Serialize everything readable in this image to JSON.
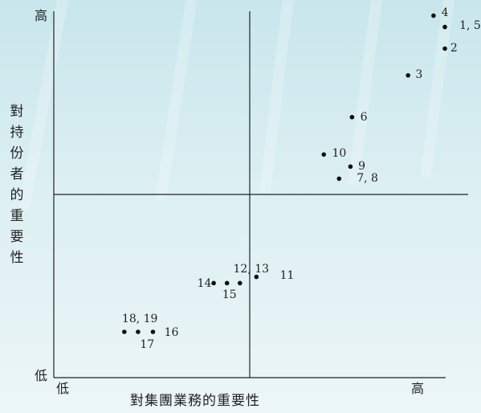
{
  "chart_data": {
    "type": "scatter",
    "xlabel": "對集團業務的重要性",
    "ylabel": "對持份者的重要性",
    "x_low": "低",
    "x_high": "高",
    "y_low": "低",
    "y_high": "高",
    "xlim": [
      0,
      100
    ],
    "ylim": [
      0,
      100
    ],
    "quadrant_split": {
      "x": 50,
      "y": 50
    },
    "points": [
      {
        "x": 96.9,
        "y": 98.8
      },
      {
        "x": 99.8,
        "y": 95.7
      },
      {
        "x": 99.8,
        "y": 89.8
      },
      {
        "x": 90.4,
        "y": 82.5
      },
      {
        "x": 76.1,
        "y": 71.1
      },
      {
        "x": 68.9,
        "y": 60.9
      },
      {
        "x": 75.7,
        "y": 57.6
      },
      {
        "x": 72.8,
        "y": 54.3
      },
      {
        "x": 51.7,
        "y": 27.5
      },
      {
        "x": 40.8,
        "y": 25.8
      },
      {
        "x": 44.2,
        "y": 25.8
      },
      {
        "x": 47.5,
        "y": 25.8
      },
      {
        "x": 18.0,
        "y": 12.5
      },
      {
        "x": 21.5,
        "y": 12.5
      },
      {
        "x": 25.3,
        "y": 12.5
      }
    ],
    "point_labels": [
      {
        "text": "4",
        "x": 98.9,
        "y": 99.6
      },
      {
        "text": "1, 5",
        "x": 103.5,
        "y": 96.1
      },
      {
        "text": "2",
        "x": 101.2,
        "y": 90.0
      },
      {
        "text": "3",
        "x": 92.3,
        "y": 82.7
      },
      {
        "text": "6",
        "x": 78.2,
        "y": 71.1
      },
      {
        "text": "10",
        "x": 71.0,
        "y": 61.1
      },
      {
        "text": "9",
        "x": 77.7,
        "y": 57.6
      },
      {
        "text": "7, 8",
        "x": 77.3,
        "y": 54.3
      },
      {
        "text": "11",
        "x": 57.7,
        "y": 27.8
      },
      {
        "text": "12, 13",
        "x": 45.8,
        "y": 29.5
      },
      {
        "text": "14",
        "x": 36.6,
        "y": 25.6
      },
      {
        "text": "15",
        "x": 43.0,
        "y": 22.5
      },
      {
        "text": "18, 19",
        "x": 17.4,
        "y": 15.9
      },
      {
        "text": "16",
        "x": 28.2,
        "y": 12.3
      },
      {
        "text": "17",
        "x": 22.0,
        "y": 9.1
      }
    ]
  }
}
